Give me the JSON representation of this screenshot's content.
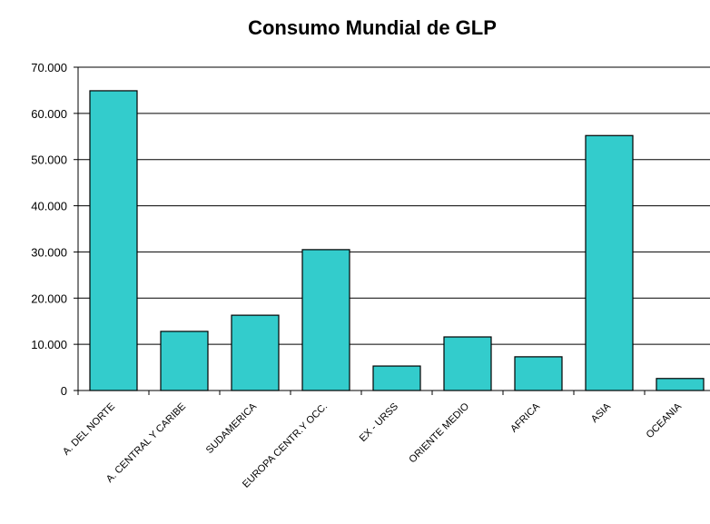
{
  "chart_data": {
    "type": "bar",
    "title": "Consumo Mundial de GLP",
    "categories": [
      "A. DEL NORTE",
      "A. CENTRAL Y CARIBE",
      "SUDAMERICA",
      "EUROPA CENTR.Y OCC.",
      "EX - URSS",
      "ORIENTE MEDIO",
      "AFRICA",
      "ASIA",
      "OCEANIA"
    ],
    "values": [
      64900,
      12800,
      16300,
      30500,
      5300,
      11600,
      7300,
      55200,
      2600
    ],
    "color": "#33cccc",
    "ylim": [
      0,
      70000
    ],
    "yticks": [
      0,
      {
        "value": 10000,
        "label": "10.000"
      },
      {
        "value": 20000,
        "label": "20.000"
      },
      {
        "value": 30000,
        "label": "30.000"
      },
      {
        "value": 40000,
        "label": "40.000"
      },
      {
        "value": 50000,
        "label": "50.000"
      },
      {
        "value": 60000,
        "label": "60.000"
      },
      {
        "value": 70000,
        "label": "70.000"
      }
    ],
    "grid": true
  }
}
